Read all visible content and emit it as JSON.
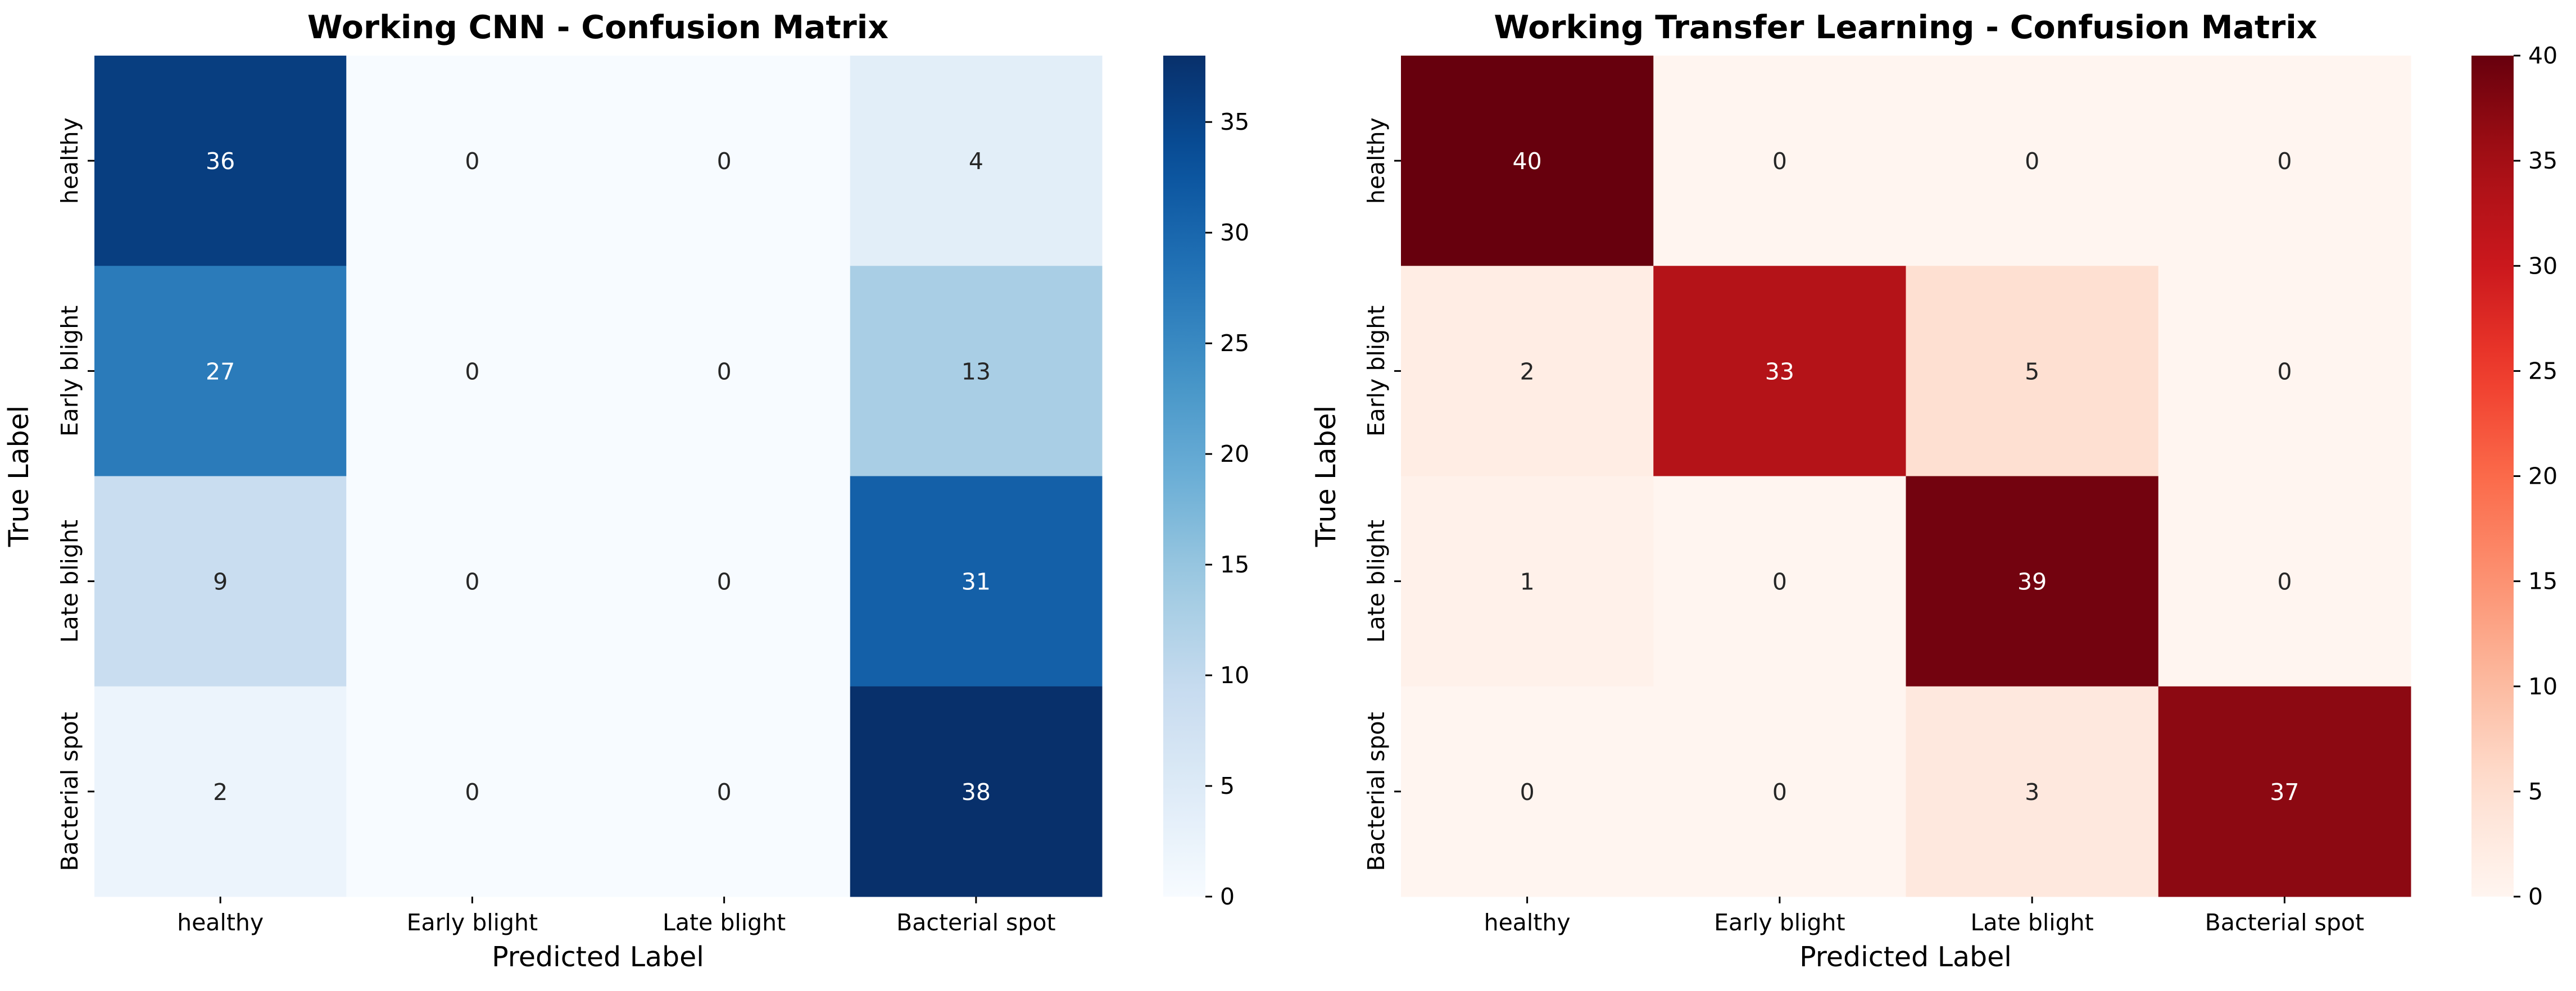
{
  "chart_data": [
    {
      "type": "heatmap",
      "title": "Working CNN - Confusion Matrix",
      "xlabel": "Predicted Label",
      "ylabel": "True Label",
      "x_categories": [
        "healthy",
        "Early blight",
        "Late blight",
        "Bacterial spot"
      ],
      "y_categories": [
        "healthy",
        "Early blight",
        "Late blight",
        "Bacterial spot"
      ],
      "values": [
        [
          36,
          0,
          0,
          4
        ],
        [
          27,
          0,
          0,
          13
        ],
        [
          9,
          0,
          0,
          31
        ],
        [
          2,
          0,
          0,
          38
        ]
      ],
      "colormap": "Blues",
      "colorbar": {
        "min": 0,
        "max": 38,
        "ticks": [
          0,
          5,
          10,
          15,
          20,
          25,
          30,
          35
        ]
      }
    },
    {
      "type": "heatmap",
      "title": "Working Transfer Learning - Confusion Matrix",
      "xlabel": "Predicted Label",
      "ylabel": "True Label",
      "x_categories": [
        "healthy",
        "Early blight",
        "Late blight",
        "Bacterial spot"
      ],
      "y_categories": [
        "healthy",
        "Early blight",
        "Late blight",
        "Bacterial spot"
      ],
      "values": [
        [
          40,
          0,
          0,
          0
        ],
        [
          2,
          33,
          5,
          0
        ],
        [
          1,
          0,
          39,
          0
        ],
        [
          0,
          0,
          3,
          37
        ]
      ],
      "colormap": "Reds",
      "colorbar": {
        "min": 0,
        "max": 40,
        "ticks": [
          0,
          5,
          10,
          15,
          20,
          25,
          30,
          35,
          40
        ]
      }
    }
  ]
}
